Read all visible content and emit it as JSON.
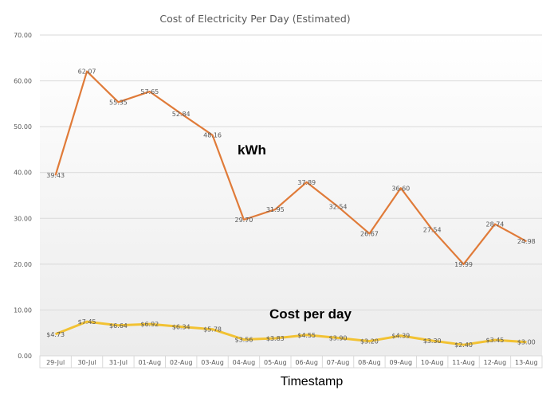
{
  "chart_data": {
    "type": "line",
    "title": "Cost of Electricity Per Day (Estimated)",
    "xlabel": "Timestamp",
    "ylabel": "",
    "ylim": [
      0,
      70
    ],
    "yticks": [
      "0.00",
      "10.00",
      "20.00",
      "30.00",
      "40.00",
      "50.00",
      "60.00",
      "70.00"
    ],
    "grid": true,
    "categories": [
      "29-Jul",
      "30-Jul",
      "31-Jul",
      "01-Aug",
      "02-Aug",
      "03-Aug",
      "04-Aug",
      "05-Aug",
      "06-Aug",
      "07-Aug",
      "08-Aug",
      "09-Aug",
      "10-Aug",
      "11-Aug",
      "12-Aug",
      "13-Aug"
    ],
    "series": [
      {
        "name": "kWh",
        "color": "#E07B39",
        "values": [
          39.43,
          62.07,
          55.35,
          57.65,
          52.84,
          48.16,
          29.7,
          31.95,
          37.89,
          32.54,
          26.67,
          36.6,
          27.54,
          19.99,
          28.74,
          24.98
        ],
        "labels": [
          "39.43",
          "62.07",
          "55.35",
          "57.65",
          "52.84",
          "48.16",
          "29.70",
          "31.95",
          "37.89",
          "32.54",
          "26.67",
          "36.60",
          "27.54",
          "19.99",
          "28.74",
          "24.98"
        ]
      },
      {
        "name": "Cost per day",
        "color": "#F2C233",
        "values": [
          4.73,
          7.45,
          6.64,
          6.92,
          6.34,
          5.78,
          3.56,
          3.83,
          4.55,
          3.9,
          3.2,
          4.39,
          3.3,
          2.4,
          3.45,
          3.0
        ],
        "labels": [
          "$4.73",
          "$7.45",
          "$6.64",
          "$6.92",
          "$6.34",
          "$5.78",
          "$3.56",
          "$3.83",
          "$4.55",
          "$3.90",
          "$3.20",
          "$4.39",
          "$3.30",
          "$2.40",
          "$3.45",
          "$3.00"
        ]
      }
    ]
  }
}
